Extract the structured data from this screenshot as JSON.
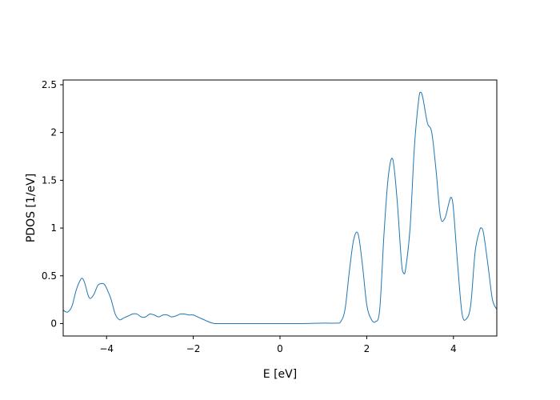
{
  "chart_data": {
    "type": "line",
    "title": "",
    "xlabel": "E [eV]",
    "ylabel": "PDOS [1/eV]",
    "xlim": [
      -5,
      5
    ],
    "ylim": [
      -0.13,
      2.55
    ],
    "grid": false,
    "legend": "none",
    "x_ticks": [
      {
        "value": -4,
        "label": "−4"
      },
      {
        "value": -2,
        "label": "−2"
      },
      {
        "value": 0,
        "label": "0"
      },
      {
        "value": 2,
        "label": "2"
      },
      {
        "value": 4,
        "label": "4"
      }
    ],
    "y_ticks": [
      {
        "value": 0,
        "label": "0"
      },
      {
        "value": 0.5,
        "label": "0.5"
      },
      {
        "value": 1,
        "label": "1"
      },
      {
        "value": 1.5,
        "label": "1.5"
      },
      {
        "value": 2,
        "label": "2"
      },
      {
        "value": 2.5,
        "label": "2.5"
      }
    ],
    "series": [
      {
        "color": "#1f77b4",
        "x": [
          -5.0,
          -4.9,
          -4.8,
          -4.7,
          -4.6,
          -4.55,
          -4.5,
          -4.4,
          -4.3,
          -4.2,
          -4.1,
          -4.05,
          -4.0,
          -3.9,
          -3.8,
          -3.7,
          -3.6,
          -3.5,
          -3.4,
          -3.3,
          -3.2,
          -3.1,
          -3.0,
          -2.9,
          -2.8,
          -2.7,
          -2.6,
          -2.5,
          -2.4,
          -2.3,
          -2.2,
          -2.1,
          -2.0,
          -1.9,
          -1.8,
          -1.7,
          -1.6,
          -1.5,
          -1.4,
          -1.3,
          -1.0,
          -0.5,
          0.0,
          0.5,
          1.0,
          1.3,
          1.4,
          1.5,
          1.6,
          1.7,
          1.8,
          1.9,
          2.0,
          2.1,
          2.2,
          2.3,
          2.4,
          2.5,
          2.6,
          2.7,
          2.8,
          2.85,
          2.9,
          3.0,
          3.1,
          3.2,
          3.25,
          3.3,
          3.4,
          3.5,
          3.6,
          3.7,
          3.8,
          3.9,
          3.95,
          4.0,
          4.1,
          4.2,
          4.3,
          4.4,
          4.5,
          4.6,
          4.65,
          4.7,
          4.8,
          4.9,
          5.0
        ],
        "y": [
          0.14,
          0.12,
          0.18,
          0.35,
          0.46,
          0.47,
          0.42,
          0.27,
          0.3,
          0.4,
          0.42,
          0.41,
          0.37,
          0.26,
          0.1,
          0.04,
          0.06,
          0.08,
          0.1,
          0.1,
          0.07,
          0.07,
          0.1,
          0.09,
          0.07,
          0.09,
          0.09,
          0.07,
          0.08,
          0.1,
          0.1,
          0.09,
          0.09,
          0.07,
          0.05,
          0.03,
          0.01,
          0.0,
          0.0,
          0.0,
          0.0,
          0.0,
          0.0,
          0.0,
          0.005,
          0.005,
          0.02,
          0.15,
          0.55,
          0.88,
          0.94,
          0.62,
          0.2,
          0.05,
          0.02,
          0.15,
          0.95,
          1.55,
          1.72,
          1.3,
          0.65,
          0.53,
          0.58,
          1.0,
          1.85,
          2.35,
          2.42,
          2.35,
          2.1,
          2.0,
          1.6,
          1.12,
          1.1,
          1.27,
          1.32,
          1.2,
          0.6,
          0.1,
          0.05,
          0.2,
          0.75,
          0.97,
          1.0,
          0.93,
          0.6,
          0.25,
          0.15
        ]
      }
    ]
  }
}
